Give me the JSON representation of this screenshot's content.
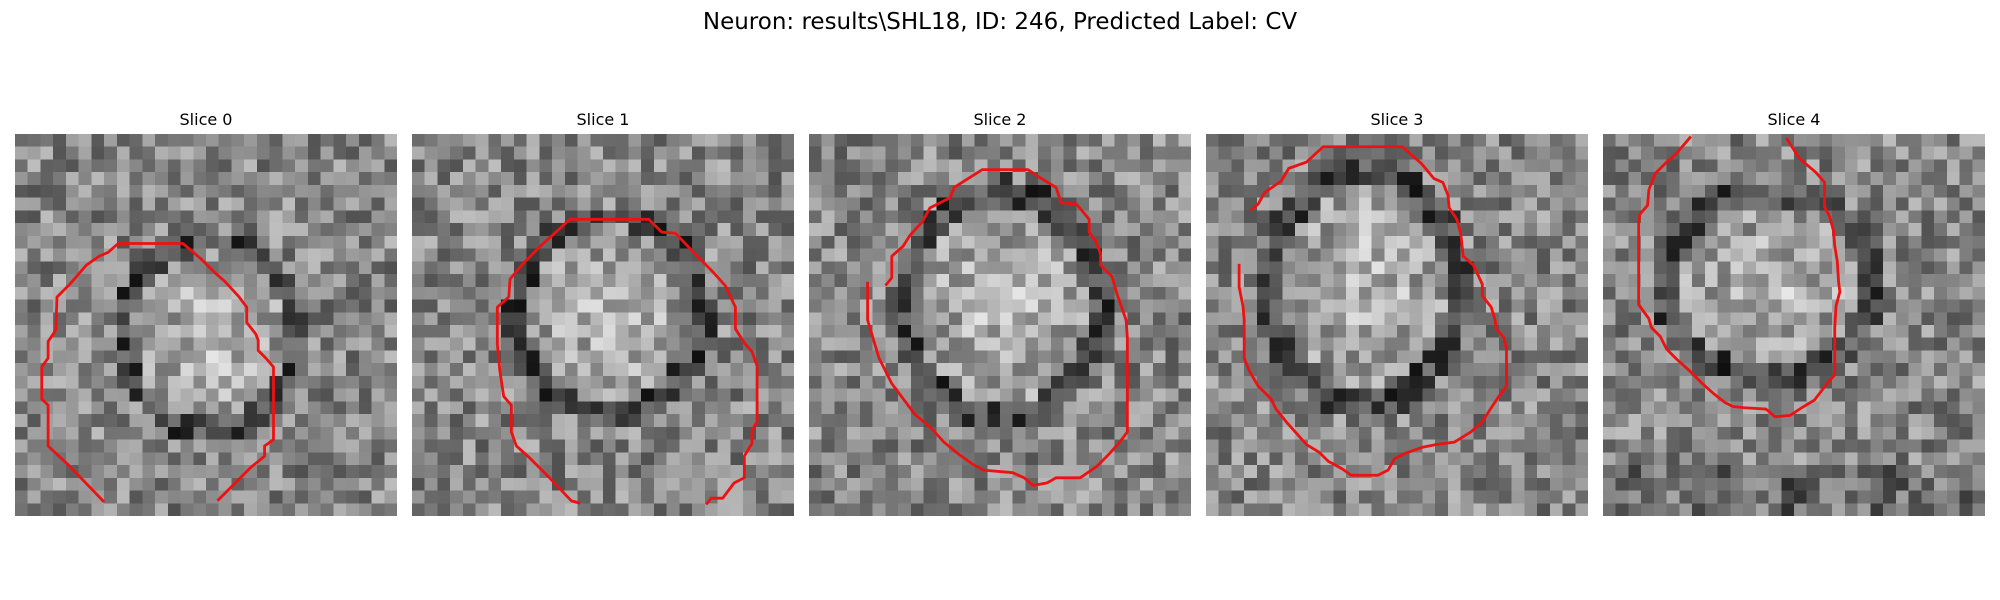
{
  "figure": {
    "title": "Neuron: results\\SHL18, ID: 246, Predicted Label: CV"
  },
  "panels": [
    {
      "title": "Slice 0"
    },
    {
      "title": "Slice 1"
    },
    {
      "title": "Slice 2"
    },
    {
      "title": "Slice 3"
    },
    {
      "title": "Slice 4"
    }
  ],
  "colors": {
    "contour": "#ee1111"
  }
}
